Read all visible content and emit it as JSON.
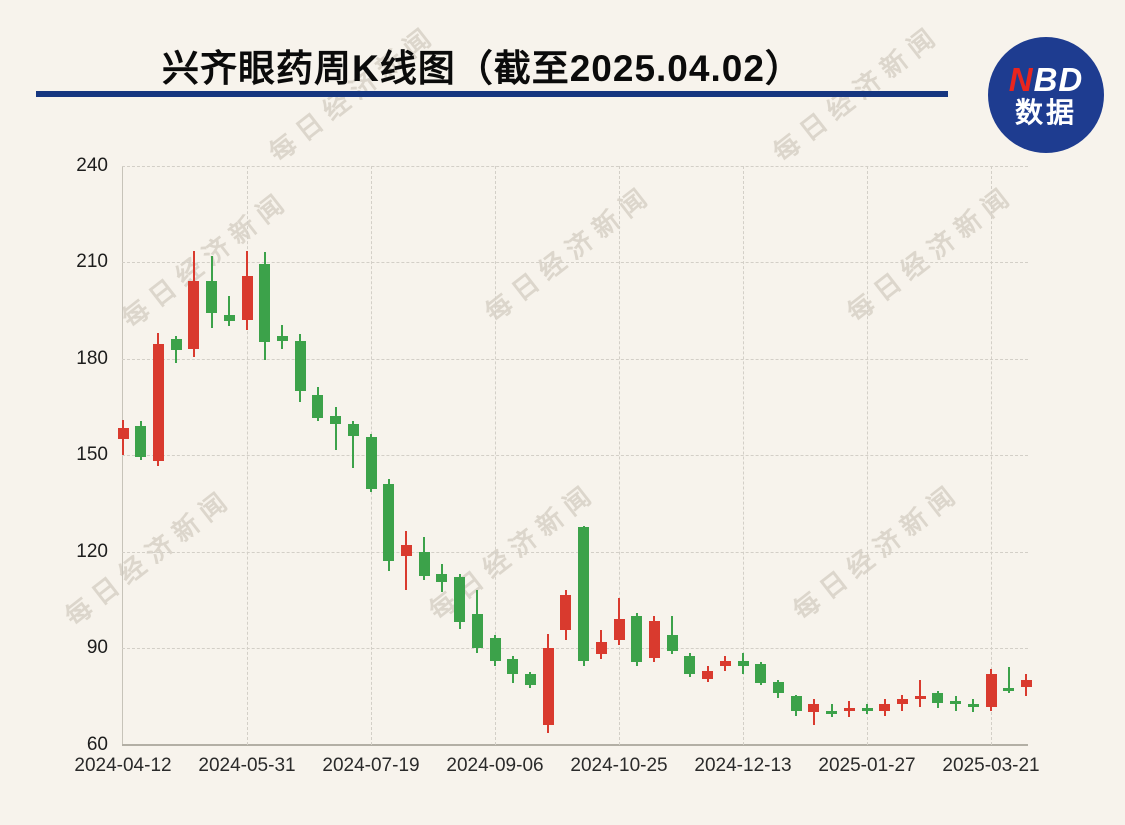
{
  "page": {
    "background": "#F7F3EC"
  },
  "header": {
    "title": "兴齐眼药周K线图（截至2025.04.02）",
    "underline_color": "#163680",
    "logo": {
      "n": "N",
      "bd": "BD",
      "sub": "数据",
      "circle_color": "#1E3C90",
      "n_color": "#E8251F",
      "text_color": "#FFFFFF"
    }
  },
  "watermark": {
    "text": "每日经济新闻"
  },
  "chart_data": {
    "type": "candlestick",
    "title": "兴齐眼药周K线图（截至2025.04.02）",
    "ylim": [
      60,
      240
    ],
    "y_ticks": [
      240,
      210,
      180,
      150,
      120,
      90,
      60
    ],
    "x_tick_labels": [
      "2024-04-12",
      "2024-05-31",
      "2024-07-19",
      "2024-09-06",
      "2024-10-25",
      "2024-12-13",
      "2025-01-27",
      "2025-03-21"
    ],
    "x_tick_indices": [
      0,
      7,
      14,
      21,
      28,
      35,
      42,
      49
    ],
    "grid": "dashed",
    "up_color": "#D93A2E",
    "down_color": "#3CA24A",
    "columns": [
      "open",
      "close",
      "high",
      "low"
    ],
    "candles": [
      [
        155.0,
        158.5,
        161.0,
        150.0
      ],
      [
        159.0,
        149.5,
        160.5,
        148.5
      ],
      [
        148.0,
        184.5,
        188.0,
        146.5
      ],
      [
        186.0,
        182.5,
        187.0,
        178.5
      ],
      [
        183.0,
        204.0,
        213.5,
        180.5
      ],
      [
        204.0,
        194.0,
        212.0,
        189.5
      ],
      [
        193.5,
        191.5,
        199.5,
        190.0
      ],
      [
        192.0,
        205.5,
        213.5,
        189.0
      ],
      [
        209.5,
        185.0,
        213.0,
        179.5
      ],
      [
        187.0,
        185.5,
        190.5,
        183.0
      ],
      [
        185.5,
        170.0,
        187.5,
        166.5
      ],
      [
        168.5,
        161.5,
        171.0,
        160.5
      ],
      [
        162.0,
        159.5,
        165.0,
        151.5
      ],
      [
        159.5,
        156.0,
        160.5,
        146.0
      ],
      [
        155.5,
        139.5,
        156.5,
        138.5
      ],
      [
        141.0,
        117.0,
        142.5,
        114.0
      ],
      [
        118.5,
        122.0,
        126.5,
        108.0
      ],
      [
        120.0,
        112.5,
        124.5,
        111.0
      ],
      [
        113.0,
        110.5,
        116.0,
        107.5
      ],
      [
        112.0,
        98.0,
        113.0,
        96.0
      ],
      [
        100.5,
        90.0,
        108.0,
        88.5
      ],
      [
        93.0,
        86.0,
        94.0,
        84.5
      ],
      [
        86.5,
        82.0,
        87.5,
        79.0
      ],
      [
        82.0,
        78.5,
        82.5,
        77.5
      ],
      [
        66.0,
        90.0,
        94.5,
        63.5
      ],
      [
        95.5,
        106.5,
        108.0,
        92.5
      ],
      [
        127.5,
        86.0,
        128.0,
        84.5
      ],
      [
        88.0,
        92.0,
        95.5,
        86.5
      ],
      [
        92.5,
        99.0,
        105.5,
        91.0
      ],
      [
        100.0,
        85.5,
        101.0,
        84.5
      ],
      [
        87.0,
        98.5,
        100.0,
        85.5
      ],
      [
        94.0,
        89.0,
        100.0,
        88.0
      ],
      [
        87.5,
        82.0,
        88.5,
        81.0
      ],
      [
        80.5,
        83.0,
        84.5,
        79.5
      ],
      [
        84.5,
        86.0,
        87.5,
        83.0
      ],
      [
        86.0,
        84.5,
        88.5,
        82.0
      ],
      [
        85.0,
        79.0,
        85.5,
        78.5
      ],
      [
        79.5,
        76.0,
        80.0,
        74.5
      ],
      [
        75.0,
        70.5,
        75.5,
        69.0
      ],
      [
        70.0,
        72.5,
        74.0,
        66.0
      ],
      [
        70.5,
        69.5,
        72.5,
        68.5
      ],
      [
        70.5,
        71.5,
        73.5,
        68.5
      ],
      [
        71.5,
        70.5,
        72.5,
        69.5
      ],
      [
        70.5,
        72.5,
        74.0,
        69.0
      ],
      [
        72.5,
        74.0,
        75.5,
        70.5
      ],
      [
        74.0,
        75.0,
        80.0,
        71.5
      ],
      [
        76.0,
        73.0,
        76.5,
        71.5
      ],
      [
        73.5,
        72.5,
        75.0,
        70.5
      ],
      [
        72.5,
        71.5,
        74.0,
        70.0
      ],
      [
        71.5,
        82.0,
        83.5,
        70.5
      ],
      [
        77.5,
        76.5,
        84.0,
        76.0
      ],
      [
        78.0,
        80.0,
        82.0,
        75.0
      ]
    ]
  }
}
